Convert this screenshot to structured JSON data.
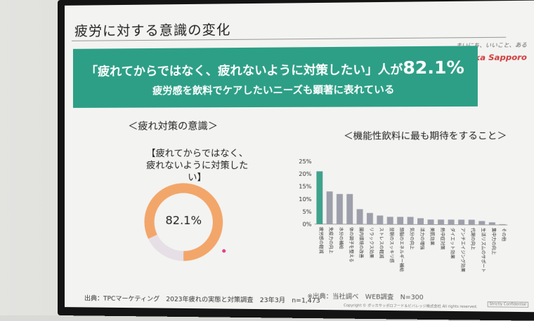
{
  "slide": {
    "title": "疲労に対する意識の変化",
    "logo_tagline": "まいにち、いいこと、ある",
    "logo_name": "Pokka Sapporo",
    "banner_line1_prefix": "「疲れてからではなく、疲れないように対策したい」人が",
    "banner_percent": "82.1%",
    "banner_line2": "疲労感を飲料でケアしたいニーズも顕著に表れている",
    "left_subtitle": "＜疲れ対策の意識＞",
    "right_subtitle": "＜機能性飲料に最も期待をすること＞",
    "question_line1": "【疲れてからではなく、",
    "question_line2": "疲れないように対策したい】",
    "donut_value_text": "82.1%",
    "source_left": "出典：TPCマーケティング　2023年疲れの実態と対策調査　23年3月　n=1,473",
    "source_right": "※出典：当社調べ　WEB調査　N=300",
    "copyright": "Copyright © ポッカサッポロフード＆ビバレッジ株式会社 All rights reserved.",
    "badge": "Strictly Confidential"
  },
  "colors": {
    "banner": "#2d9f86",
    "donut_main": "#f2a66a",
    "donut_rest": "#e6dfe6",
    "bar_highlight": "#3fa28d",
    "bar_default": "#9d9fab"
  },
  "chart_data": [
    {
      "type": "pie",
      "values": [
        82.1,
        17.9
      ],
      "display": "donut"
    },
    {
      "type": "bar",
      "yticks": [
        "25%",
        "20%",
        "15%",
        "10%",
        "5%",
        "0%"
      ],
      "ylim": [
        0,
        25
      ],
      "categories": [
        "疲労感の軽減",
        "免疫力の向上",
        "水分の補給",
        "体の調子を整える",
        "腸内環境の改善",
        "リラックス効果",
        "ストレスの軽減",
        "翌朝のスッキリ感",
        "頭脳のエネルギー補給",
        "気分の向上",
        "活力の増強",
        "美肌効果",
        "熱中症対策",
        "ダイエット効果",
        "アンチエイジング効果",
        "代謝の向上",
        "生活リズムのサポート",
        "集中力の向上",
        "その他"
      ],
      "values": [
        21,
        13,
        12,
        12,
        6,
        4.5,
        3.5,
        3,
        3,
        3,
        2.5,
        2,
        2,
        2,
        2,
        2,
        1.5,
        1,
        0.3
      ]
    }
  ]
}
